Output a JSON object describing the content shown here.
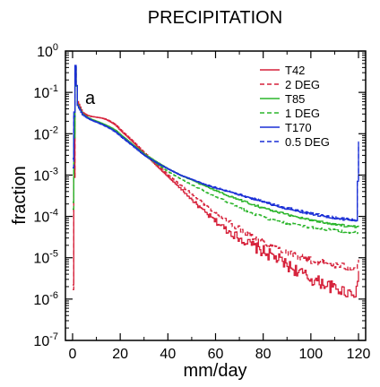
{
  "chart_data": {
    "type": "line",
    "title": "PRECIPITATION",
    "panel_label": "a",
    "xlabel": "mm/day",
    "ylabel": "fraction",
    "xlim": [
      -3,
      123
    ],
    "ylim_log10": [
      -7,
      0
    ],
    "y_scale": "log",
    "x_ticks": [
      0,
      20,
      40,
      60,
      80,
      100,
      120
    ],
    "x_tick_labels": [
      "0",
      "20",
      "40",
      "60",
      "80",
      "100",
      "120"
    ],
    "y_ticks_log10": [
      0,
      -1,
      -2,
      -3,
      -4,
      -5,
      -6,
      -7
    ],
    "y_tick_labels": [
      {
        "base": "10",
        "exp": "0"
      },
      {
        "base": "10",
        "exp": "-1"
      },
      {
        "base": "10",
        "exp": "-2"
      },
      {
        "base": "10",
        "exp": "-3"
      },
      {
        "base": "10",
        "exp": "-4"
      },
      {
        "base": "10",
        "exp": "-5"
      },
      {
        "base": "10",
        "exp": "-6"
      },
      {
        "base": "10",
        "exp": "-7"
      }
    ],
    "grid": false,
    "legend_position": "top-right",
    "series": [
      {
        "name": "T42",
        "color": "#d6213a",
        "dash": "solid",
        "x": [
          0,
          1,
          2,
          4,
          6,
          8,
          10,
          12,
          14,
          16,
          18,
          20,
          25,
          30,
          35,
          40,
          45,
          50,
          55,
          60,
          65,
          70,
          75,
          80,
          85,
          90,
          95,
          100,
          105,
          110,
          115,
          119,
          120
        ],
        "y": [
          2.2e-06,
          0.35,
          0.06,
          0.033,
          0.028,
          0.026,
          0.025,
          0.024,
          0.022,
          0.019,
          0.016,
          0.012,
          0.0065,
          0.0033,
          0.0017,
          0.0009,
          0.00048,
          0.00025,
          0.00013,
          7.5e-05,
          4.5e-05,
          3e-05,
          2e-05,
          1.4e-05,
          1e-05,
          6.5e-06,
          4.5e-06,
          3e-06,
          2.4e-06,
          1.8e-06,
          1.5e-06,
          1.5e-06,
          4.8e-06
        ]
      },
      {
        "name": "2 DEG",
        "color": "#d6213a",
        "dash": "dashed",
        "x": [
          0,
          1,
          2,
          4,
          6,
          8,
          10,
          12,
          14,
          16,
          18,
          20,
          25,
          30,
          35,
          40,
          45,
          50,
          55,
          60,
          65,
          70,
          75,
          80,
          85,
          90,
          95,
          100,
          105,
          110,
          115,
          119,
          120
        ],
        "y": [
          1.7e-06,
          0.38,
          0.055,
          0.032,
          0.027,
          0.026,
          0.025,
          0.024,
          0.0225,
          0.0195,
          0.0165,
          0.0125,
          0.0068,
          0.0035,
          0.0019,
          0.001,
          0.00058,
          0.00034,
          0.0002,
          0.00012,
          7.5e-05,
          5e-05,
          3.4e-05,
          2.4e-05,
          1.8e-05,
          1.4e-05,
          1.1e-05,
          8.5e-06,
          7.5e-06,
          6.5e-06,
          6e-06,
          6e-06,
          9e-06
        ]
      },
      {
        "name": "T85",
        "color": "#2bb52b",
        "dash": "solid",
        "x": [
          0,
          1,
          2,
          4,
          6,
          8,
          10,
          12,
          14,
          16,
          18,
          20,
          25,
          30,
          35,
          40,
          45,
          50,
          55,
          60,
          65,
          70,
          75,
          80,
          85,
          90,
          95,
          100,
          105,
          110,
          115,
          119,
          120
        ],
        "y": [
          0.00022,
          0.4,
          0.05,
          0.03,
          0.025,
          0.022,
          0.02,
          0.018,
          0.016,
          0.014,
          0.012,
          0.0095,
          0.0055,
          0.0032,
          0.0021,
          0.0014,
          0.001,
          0.00075,
          0.00055,
          0.00042,
          0.00032,
          0.00025,
          0.0002,
          0.00016,
          0.00013,
          0.00011,
          9.5e-05,
          8.2e-05,
          7.2e-05,
          6.5e-05,
          5.8e-05,
          5.5e-05,
          6e-05
        ]
      },
      {
        "name": "1 DEG",
        "color": "#2bb52b",
        "dash": "dashed",
        "x": [
          0,
          1,
          2,
          4,
          6,
          8,
          10,
          12,
          14,
          16,
          18,
          20,
          25,
          30,
          35,
          40,
          45,
          50,
          55,
          60,
          65,
          70,
          75,
          80,
          85,
          90,
          95,
          100,
          105,
          110,
          115,
          119,
          120
        ],
        "y": [
          0.00015,
          0.42,
          0.05,
          0.03,
          0.025,
          0.022,
          0.0195,
          0.0175,
          0.0155,
          0.0135,
          0.0115,
          0.009,
          0.0052,
          0.003,
          0.0019,
          0.0012,
          0.00082,
          0.00058,
          0.00041,
          0.0003,
          0.00022,
          0.00016,
          0.00012,
          9.5e-05,
          7.8e-05,
          6.8e-05,
          6e-05,
          5.4e-05,
          5e-05,
          4.6e-05,
          4.2e-05,
          4e-05,
          4e-05
        ]
      },
      {
        "name": "T170",
        "color": "#1a2fd6",
        "dash": "solid",
        "x": [
          0,
          1,
          2,
          4,
          6,
          8,
          10,
          12,
          14,
          16,
          18,
          20,
          25,
          30,
          35,
          40,
          45,
          50,
          55,
          60,
          65,
          70,
          75,
          80,
          85,
          90,
          95,
          100,
          105,
          110,
          115,
          119,
          120
        ],
        "y": [
          0.0025,
          0.45,
          0.048,
          0.029,
          0.024,
          0.021,
          0.019,
          0.017,
          0.015,
          0.013,
          0.011,
          0.0088,
          0.0052,
          0.003,
          0.002,
          0.0014,
          0.001,
          0.00078,
          0.0006,
          0.00048,
          0.0004,
          0.00033,
          0.00027,
          0.00022,
          0.00018,
          0.00015,
          0.00013,
          0.000115,
          0.0001,
          9e-05,
          8.2e-05,
          7.8e-05,
          0.0065
        ]
      },
      {
        "name": "0.5 DEG",
        "color": "#1a2fd6",
        "dash": "dashed",
        "x": [
          0,
          1,
          2,
          4,
          6,
          8,
          10,
          12,
          14,
          16,
          18,
          20,
          25,
          30,
          35,
          40,
          45,
          50,
          55,
          60,
          65,
          70,
          75,
          80,
          85,
          90,
          95,
          100,
          105,
          110,
          115,
          119,
          120
        ],
        "y": [
          0.0015,
          0.46,
          0.047,
          0.029,
          0.024,
          0.021,
          0.0188,
          0.0168,
          0.0148,
          0.0128,
          0.0108,
          0.0086,
          0.0051,
          0.003,
          0.002,
          0.0014,
          0.001,
          0.00078,
          0.00061,
          0.0005,
          0.00041,
          0.00034,
          0.00028,
          0.00023,
          0.00019,
          0.00016,
          0.00014,
          0.00012,
          0.000105,
          9.5e-05,
          8.7e-05,
          8e-05,
          0.0058
        ]
      }
    ]
  }
}
